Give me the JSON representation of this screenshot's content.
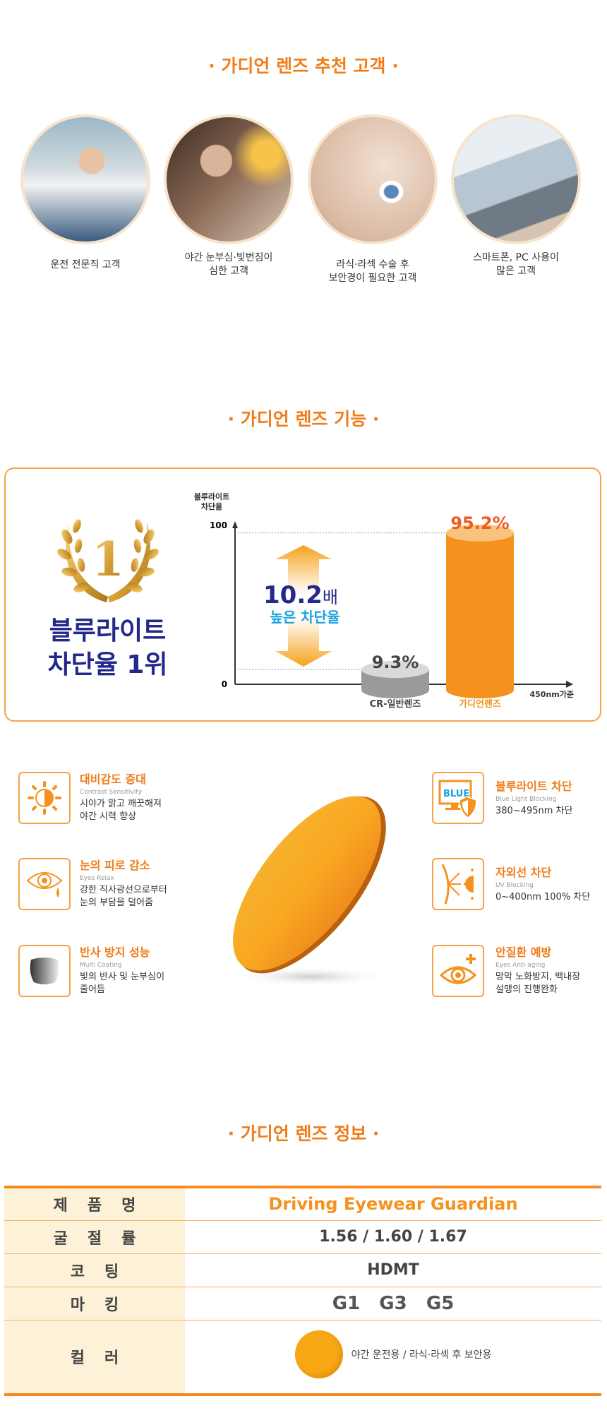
{
  "section1": {
    "title": "· 가디언 렌즈 추천 고객 ·",
    "customers": [
      {
        "label": "운전 전문직 고객",
        "image": "bus-driver-photo"
      },
      {
        "label": "야간 눈부심·빛번짐이\n심한 고객",
        "image": "night-driver-photo"
      },
      {
        "label": "라식·라섹 수술 후\n보안경이 필요한 고객",
        "image": "eye-closeup-photo"
      },
      {
        "label": "스마트폰, PC 사용이\n많은 고객",
        "image": "laptop-phone-photo"
      }
    ]
  },
  "section2": {
    "title": "· 가디언 렌즈 기능 ·",
    "award": {
      "rank_glyph": "1",
      "line1": "블루라이트",
      "line2": "차단율 1위"
    },
    "ratio": {
      "value": "10.2",
      "unit": "배",
      "caption": "높은 차단율"
    },
    "features_left": [
      {
        "icon": "sun-contrast-icon",
        "title": "대비감도 증대",
        "en": "Contrast Sensitivity",
        "desc1": "시야가 맑고 깨끗해져",
        "desc2": "야간 시력 향상"
      },
      {
        "icon": "eye-tear-icon",
        "title": "눈의 피로 감소",
        "en": "Eyes Relax",
        "desc1": "강한 직사광선으로부터",
        "desc2": "눈의 부담을 덜어줌"
      },
      {
        "icon": "lens-coating-icon",
        "title": "반사 방지 성능",
        "en": "Multi Coating",
        "desc1": "빛의 반사 및 눈부심이",
        "desc2": "줄어듬"
      }
    ],
    "features_right": [
      {
        "icon": "blue-monitor-shield-icon",
        "badge": "BLUE",
        "title": "블루라이트 차단",
        "en": "Blue Light Blocking",
        "desc1": "380~495nm 차단",
        "desc2": ""
      },
      {
        "icon": "uv-sun-icon",
        "title": "자외선 차단",
        "en": "UV Blocking",
        "desc1": "0~400nm 100% 차단",
        "desc2": ""
      },
      {
        "icon": "eye-plus-icon",
        "title": "안질환 예방",
        "en": "Eyes Anti-aging",
        "desc1": "망막 노화방지, 백내장",
        "desc2": "설맹의 진행완화"
      }
    ]
  },
  "chart_data": {
    "type": "bar",
    "ylabel": "블루라이트\n차단율",
    "xlabel": "450nm가준",
    "ylim": [
      0,
      100
    ],
    "yticks": [
      "0",
      "100"
    ],
    "categories": [
      "CR-일반렌즈",
      "가디언렌즈"
    ],
    "values": [
      9.3,
      95.2
    ],
    "data_labels": [
      "9.3%",
      "95.2%"
    ],
    "colors": [
      "#9a9a9a",
      "#f5921e"
    ],
    "grid": false
  },
  "section3": {
    "title": "· 가디언 렌즈 정보 ·",
    "rows": [
      {
        "label": "제품명",
        "value": "Driving Eyewear Guardian"
      },
      {
        "label": "굴절률",
        "value": "1.56 /  1.60 / 1.67"
      },
      {
        "label": "코팅",
        "value": "HDMT"
      },
      {
        "label": "마킹",
        "value": "G1   G3   G5"
      },
      {
        "label": "컬러",
        "value": "야간 운전용 / 라식·라섹 후 보안용",
        "swatch": "#f8a815"
      }
    ]
  },
  "colors": {
    "accent": "#f07d1a",
    "navy": "#23288a",
    "cyan": "#1aa3e0"
  }
}
